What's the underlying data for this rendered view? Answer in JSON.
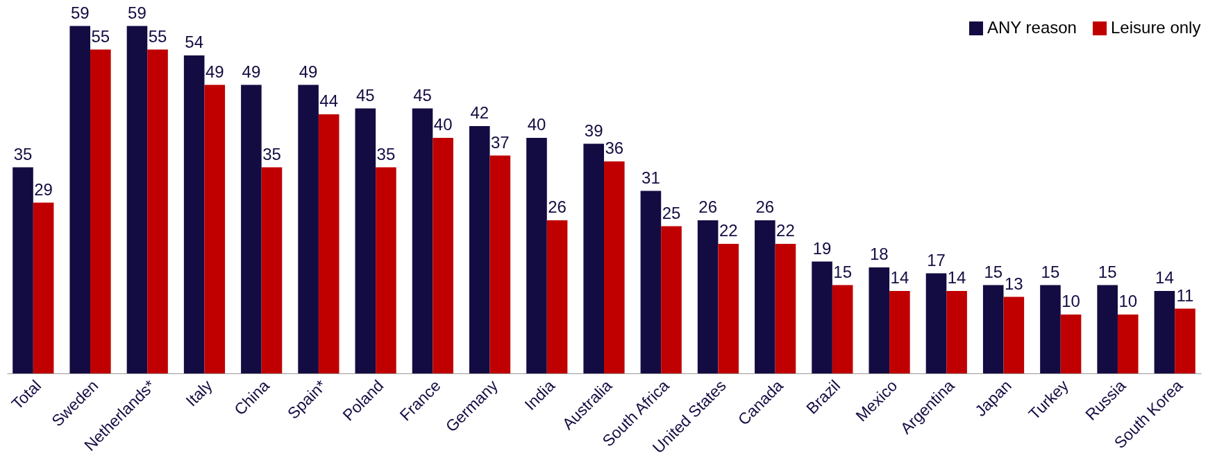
{
  "chart_data": {
    "type": "bar",
    "categories": [
      "Total",
      "Sweden",
      "Netherlands*",
      "Italy",
      "China",
      "Spain*",
      "Poland",
      "France",
      "Germany",
      "India",
      "Australia",
      "South Africa",
      "United States",
      "Canada",
      "Brazil",
      "Mexico",
      "Argentina",
      "Japan",
      "Turkey",
      "Russia",
      "South Korea"
    ],
    "series": [
      {
        "name": "ANY reason",
        "color": "#130c42",
        "values": [
          35,
          59,
          59,
          54,
          49,
          49,
          45,
          45,
          42,
          40,
          39,
          31,
          26,
          26,
          19,
          18,
          17,
          15,
          15,
          15,
          14
        ]
      },
      {
        "name": "Leisure only",
        "color": "#c00000",
        "values": [
          29,
          55,
          55,
          49,
          35,
          44,
          35,
          40,
          37,
          26,
          36,
          25,
          22,
          22,
          15,
          14,
          14,
          13,
          10,
          10,
          11
        ]
      }
    ],
    "data_labels": true,
    "legend": "top right",
    "grid": false
  }
}
